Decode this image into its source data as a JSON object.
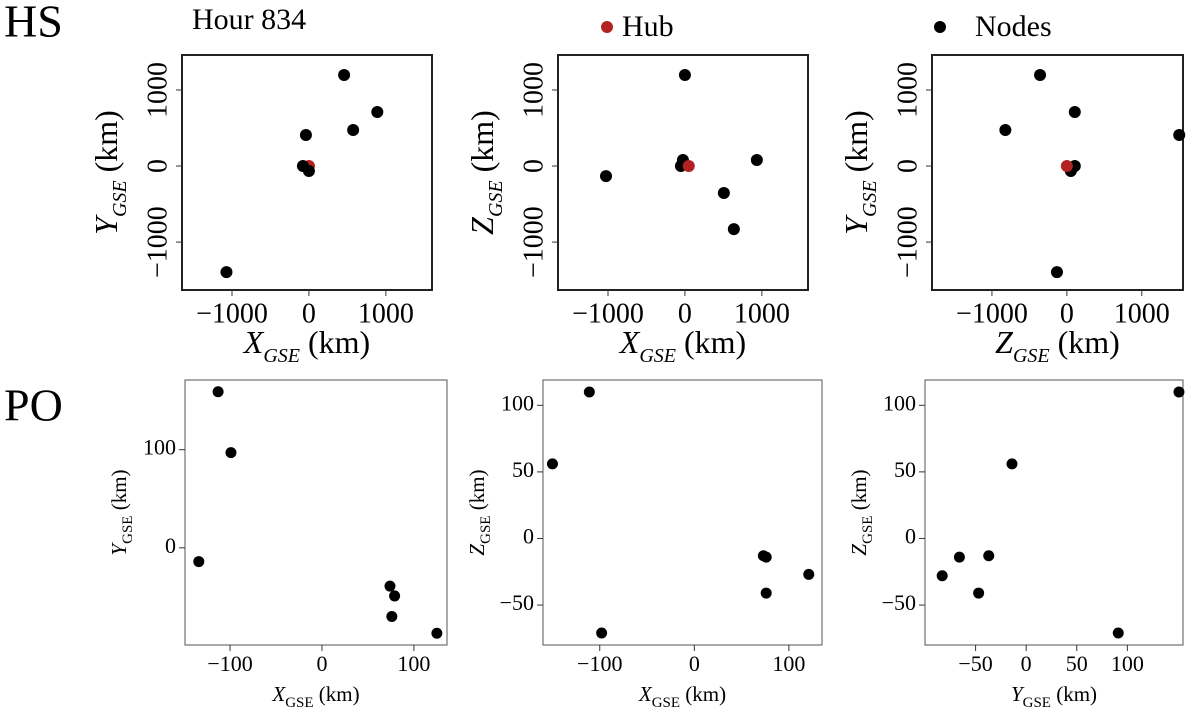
{
  "row_labels": [
    "HS",
    "PO"
  ],
  "chart_data": [
    {
      "type": "scatter",
      "title": "Hour 834",
      "xlabel": [
        "X",
        "GSE",
        " (km)"
      ],
      "ylabel": [
        "Y",
        "GSE",
        " (km)"
      ],
      "xlim": [
        -1650,
        1600
      ],
      "ylim": [
        -1630,
        1460
      ],
      "xticks": [
        {
          "value": -1000,
          "label": "−1000"
        },
        0,
        1000
      ],
      "yticks": [
        {
          "value": -1000,
          "label": "−1000"
        },
        0,
        1000
      ],
      "series": [
        {
          "name": "Hub",
          "color": "#b22222",
          "x": [
            0
          ],
          "values": [
            0
          ]
        },
        {
          "name": "Nodes",
          "color": "#000000",
          "x": [
            457,
            889,
            575,
            -39,
            -78,
            0,
            -1072
          ],
          "values": [
            1197,
            711,
            474,
            408,
            0,
            -66,
            -1395
          ]
        }
      ]
    },
    {
      "type": "scatter",
      "xlabel": [
        "X",
        "GSE",
        " (km)"
      ],
      "ylabel": [
        "Z",
        "GSE",
        " (km)"
      ],
      "xlim": [
        -1650,
        1600
      ],
      "ylim": [
        -1630,
        1460
      ],
      "xticks": [
        {
          "value": -1000,
          "label": "−1000"
        },
        0,
        1000
      ],
      "yticks": [
        {
          "value": -1000,
          "label": "−1000"
        },
        0,
        1000
      ],
      "series": [
        {
          "color": "#000000",
          "x": [
            0,
            -1026,
            -26,
            -52,
            935,
            506,
            636
          ],
          "values": [
            1197,
            -132,
            79,
            0,
            79,
            -355,
            -829
          ]
        },
        {
          "color": "#b22222",
          "x": [
            50
          ],
          "values": [
            0
          ]
        }
      ]
    },
    {
      "type": "scatter",
      "xlabel": [
        "Z",
        "GSE",
        " (km)"
      ],
      "ylabel": [
        "Y",
        "GSE",
        " (km)"
      ],
      "xlim": [
        -1800,
        1550
      ],
      "ylim": [
        -1630,
        1460
      ],
      "xticks": [
        {
          "value": -1000,
          "label": "−1000"
        },
        0,
        1000
      ],
      "yticks": [
        {
          "value": -1000,
          "label": "−1000"
        },
        0,
        1000
      ],
      "series": [
        {
          "color": "#000000",
          "x": [
            -358,
            106,
            -821,
            1500,
            106,
            53,
            -132
          ],
          "values": [
            1197,
            711,
            474,
            408,
            0,
            -66,
            -1395
          ]
        },
        {
          "color": "#b22222",
          "x": [
            0
          ],
          "values": [
            0
          ]
        }
      ]
    },
    {
      "type": "scatter",
      "xlabel": [
        "X",
        "GSE",
        " (km)"
      ],
      "ylabel": [
        "Y",
        "GSE",
        " (km)"
      ],
      "xlim": [
        -149,
        136
      ],
      "ylim": [
        -99,
        171
      ],
      "xticks": [
        {
          "value": -100,
          "label": "−100"
        },
        0,
        100
      ],
      "yticks": [
        0,
        100
      ],
      "series": [
        {
          "color": "#000000",
          "x": [
            -113,
            -99,
            -134,
            74,
            79,
            76,
            125
          ],
          "values": [
            159,
            97,
            -14,
            -39,
            -49,
            -70,
            -87
          ]
        }
      ]
    },
    {
      "type": "scatter",
      "xlabel": [
        "X",
        "GSE",
        " (km)"
      ],
      "ylabel": [
        "Z",
        "GSE",
        " (km)"
      ],
      "xlim": [
        -160,
        135
      ],
      "ylim": [
        -80,
        119
      ],
      "xticks": [
        {
          "value": -100,
          "label": "−100"
        },
        0,
        100
      ],
      "yticks": [
        {
          "value": -50,
          "label": "−50"
        },
        0,
        50,
        100
      ],
      "series": [
        {
          "color": "#000000",
          "x": [
            -111,
            -150,
            -98,
            73,
            76,
            76,
            121
          ],
          "values": [
            110,
            56,
            -71,
            -13,
            -14,
            -41,
            -27
          ]
        }
      ]
    },
    {
      "type": "scatter",
      "xlabel": [
        "Y",
        "GSE",
        " (km)"
      ],
      "ylabel": [
        "Z",
        "GSE",
        " (km)"
      ],
      "xlim": [
        -100,
        155
      ],
      "ylim": [
        -80,
        119
      ],
      "xticks": [
        {
          "value": -50,
          "label": "−50"
        },
        0,
        50,
        100
      ],
      "yticks": [
        {
          "value": -50,
          "label": "−50"
        },
        0,
        50,
        100
      ],
      "series": [
        {
          "color": "#000000",
          "x": [
            151,
            -14,
            -83,
            -66,
            -37,
            -47,
            91
          ],
          "values": [
            110,
            56,
            -28,
            -14,
            -13,
            -41,
            -71
          ]
        }
      ]
    }
  ]
}
